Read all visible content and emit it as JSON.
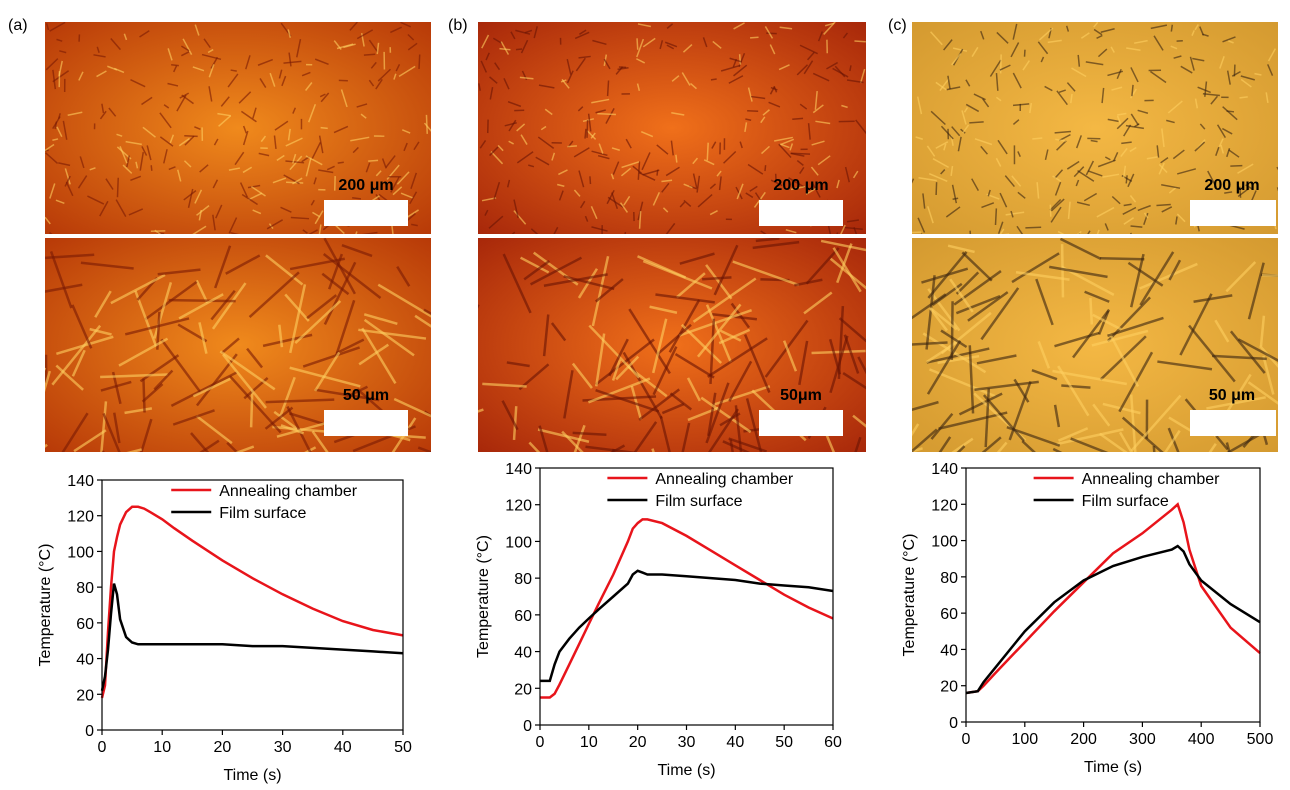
{
  "panels": [
    {
      "label": "(a)",
      "micrographs": [
        {
          "scale_label": "200 μm"
        },
        {
          "scale_label": "50 μm"
        }
      ]
    },
    {
      "label": "(b)",
      "micrographs": [
        {
          "scale_label": "200 μm"
        },
        {
          "scale_label": "50μm"
        }
      ]
    },
    {
      "label": "(c)",
      "micrographs": [
        {
          "scale_label": "200 μm"
        },
        {
          "scale_label": "50 μm"
        }
      ]
    }
  ],
  "chart_data": [
    {
      "type": "line",
      "xlabel": "Time (s)",
      "ylabel": "Temperature (°C)",
      "x": [
        0,
        0.5,
        1,
        1.5,
        2,
        2.5,
        3,
        4,
        5,
        6,
        7,
        8,
        10,
        12,
        15,
        20,
        25,
        30,
        35,
        40,
        45,
        50
      ],
      "series": [
        {
          "name": "Annealing chamber",
          "color": "#e8141b",
          "values": [
            18,
            25,
            55,
            80,
            100,
            108,
            115,
            122,
            125,
            125,
            124,
            122,
            118,
            113,
            106,
            95,
            85,
            76,
            68,
            61,
            56,
            53
          ]
        },
        {
          "name": "Film surface",
          "color": "#000000",
          "values": [
            22,
            30,
            45,
            65,
            82,
            76,
            62,
            52,
            49,
            48,
            48,
            48,
            48,
            48,
            48,
            48,
            47,
            47,
            46,
            45,
            44,
            43
          ]
        }
      ],
      "xlim": [
        0,
        50
      ],
      "ylim": [
        0,
        140
      ],
      "xticks": [
        0,
        10,
        20,
        30,
        40,
        50
      ],
      "yticks": [
        0,
        20,
        40,
        60,
        80,
        100,
        120,
        140
      ],
      "legend": "upper right"
    },
    {
      "type": "line",
      "xlabel": "Time (s)",
      "ylabel": "Temperature (°C)",
      "x": [
        0,
        2,
        3,
        4,
        6,
        8,
        10,
        12,
        15,
        18,
        19,
        20,
        21,
        22,
        25,
        30,
        35,
        40,
        45,
        50,
        55,
        60
      ],
      "series": [
        {
          "name": "Annealing chamber",
          "color": "#e8141b",
          "values": [
            15,
            15,
            17,
            22,
            33,
            44,
            55,
            66,
            82,
            100,
            107,
            110,
            112,
            112,
            110,
            103,
            95,
            87,
            79,
            71,
            64,
            58
          ]
        },
        {
          "name": "Film surface",
          "color": "#000000",
          "values": [
            24,
            24,
            33,
            40,
            47,
            53,
            58,
            63,
            70,
            77,
            82,
            84,
            83,
            82,
            82,
            81,
            80,
            79,
            77,
            76,
            75,
            73
          ]
        }
      ],
      "xlim": [
        0,
        60
      ],
      "ylim": [
        0,
        140
      ],
      "xticks": [
        0,
        10,
        20,
        30,
        40,
        50,
        60
      ],
      "yticks": [
        0,
        20,
        40,
        60,
        80,
        100,
        120,
        140
      ],
      "legend": "upper right"
    },
    {
      "type": "line",
      "xlabel": "Time (s)",
      "ylabel": "Temperature (°C)",
      "x": [
        0,
        20,
        30,
        50,
        100,
        150,
        200,
        250,
        300,
        350,
        360,
        370,
        380,
        400,
        450,
        500
      ],
      "series": [
        {
          "name": "Annealing chamber",
          "color": "#e8141b",
          "values": [
            16,
            17,
            20,
            27,
            44,
            61,
            77,
            93,
            104,
            117,
            120,
            110,
            95,
            75,
            52,
            38
          ]
        },
        {
          "name": "Film surface",
          "color": "#000000",
          "values": [
            16,
            17,
            22,
            30,
            50,
            66,
            78,
            86,
            91,
            95,
            97,
            94,
            87,
            78,
            65,
            55
          ]
        }
      ],
      "xlim": [
        0,
        500
      ],
      "ylim": [
        0,
        140
      ],
      "xticks": [
        0,
        100,
        200,
        300,
        400,
        500
      ],
      "yticks": [
        0,
        20,
        40,
        60,
        80,
        100,
        120,
        140
      ],
      "legend": "upper right"
    }
  ]
}
